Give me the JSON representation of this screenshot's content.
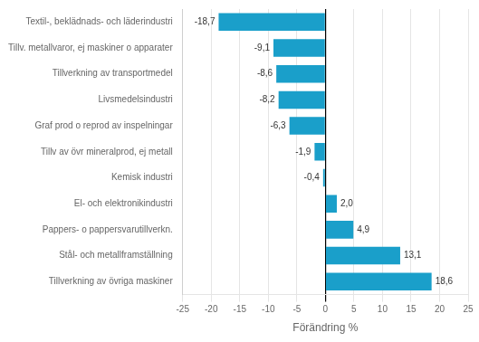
{
  "chart_data": {
    "type": "bar",
    "orientation": "horizontal",
    "categories": [
      "Textil-, beklädnads- och läderindustri",
      "Tillv. metallvaror, ej maskiner o apparater",
      "Tillverkning av transportmedel",
      "Livsmedelsindustri",
      "Graf prod o reprod av inspelningar",
      "Tillv av övr mineralprod, ej metall",
      "Kemisk industri",
      "El- och elektronikindustri",
      "Pappers- o pappersvarutillverkn.",
      "Stål- och metallframställning",
      "Tillverkning av övriga maskiner"
    ],
    "values": [
      -18.7,
      -9.1,
      -8.6,
      -8.2,
      -6.3,
      -1.9,
      -0.4,
      2.0,
      4.9,
      13.1,
      18.6
    ],
    "value_labels": [
      "-18,7",
      "-9,1",
      "-8,6",
      "-8,2",
      "-6,3",
      "-1,9",
      "-0,4",
      "2,0",
      "4,9",
      "13,1",
      "18,6"
    ],
    "data_labels": true,
    "color": "#1a9fca",
    "xlabel": "Förändring %",
    "xlim": [
      -25,
      25
    ],
    "xticks": [
      -25,
      -20,
      -15,
      -10,
      -5,
      0,
      5,
      10,
      15,
      20,
      25
    ],
    "grid": true
  }
}
